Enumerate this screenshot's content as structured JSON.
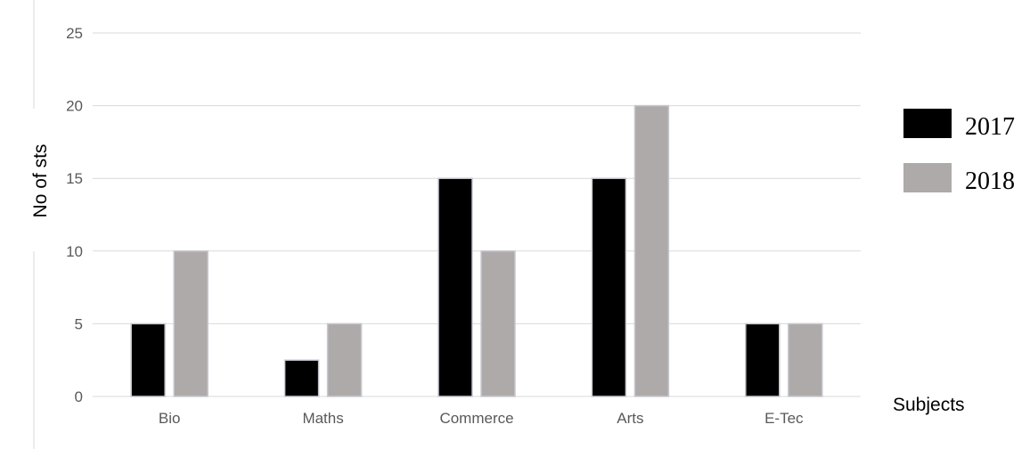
{
  "chart_data": {
    "type": "bar",
    "title": "",
    "xlabel": "Subjects",
    "ylabel": "No of sts",
    "categories": [
      "Bio",
      "Maths",
      "Commerce",
      "Arts",
      "E-Tec"
    ],
    "series": [
      {
        "name": "2017",
        "color": "#000000",
        "values": [
          5,
          2.5,
          15,
          15,
          5
        ]
      },
      {
        "name": "2018",
        "color": "#aeaaaa",
        "values": [
          10,
          5,
          10,
          20,
          5
        ]
      }
    ],
    "ylim": [
      0,
      25
    ],
    "yticks": [
      "0",
      "5",
      "10",
      "15",
      "20",
      "25"
    ],
    "grid": true,
    "legend_position": "right"
  }
}
